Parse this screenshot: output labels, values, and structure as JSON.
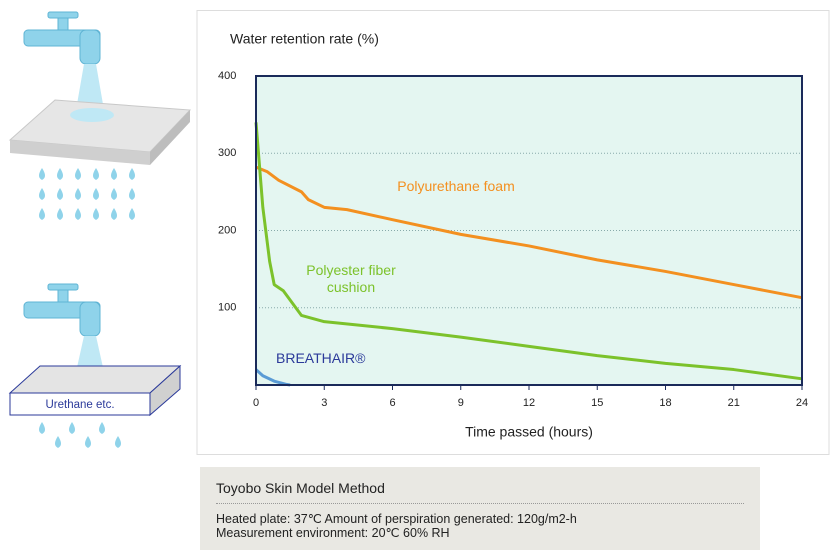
{
  "chart_data": {
    "type": "line",
    "title": "Water retention rate (%)",
    "x_label": "Time passed (hours)",
    "xlim": [
      0,
      24
    ],
    "xticks": [
      0,
      3,
      6,
      9,
      12,
      15,
      18,
      21,
      24
    ],
    "ylim": [
      0,
      400
    ],
    "yticks": [
      100,
      200,
      300,
      400
    ],
    "grid": true,
    "series": [
      {
        "name": "Polyurethane foam",
        "color": "#f39020",
        "x": [
          0,
          0.5,
          1,
          2,
          2.3,
          3,
          4,
          6,
          9,
          12,
          15,
          18,
          21,
          24
        ],
        "values": [
          282,
          276,
          265,
          250,
          240,
          230,
          227,
          214,
          195,
          180,
          162,
          147,
          130,
          113
        ]
      },
      {
        "name": "Polyester fiber cushion",
        "color": "#7cc22b",
        "x": [
          0,
          0.3,
          0.6,
          0.8,
          1.2,
          2,
          3,
          6,
          9,
          12,
          15,
          18,
          21,
          24
        ],
        "values": [
          340,
          230,
          160,
          130,
          122,
          90,
          82,
          73,
          62,
          50,
          38,
          28,
          20,
          8
        ]
      },
      {
        "name": "BREATHAIR®",
        "color": "#5a9bd5",
        "x": [
          0,
          0.3,
          0.8,
          1.3,
          1.5
        ],
        "values": [
          20,
          12,
          5,
          1,
          0
        ]
      }
    ]
  },
  "illustration": {
    "label": "Urethane etc."
  },
  "note": {
    "title": "Toyobo Skin Model Method",
    "lines": [
      "Heated plate: 37℃ Amount of perspiration generated: 120g/m2-h",
      "Measurement environment: 20℃ 60% RH"
    ]
  }
}
